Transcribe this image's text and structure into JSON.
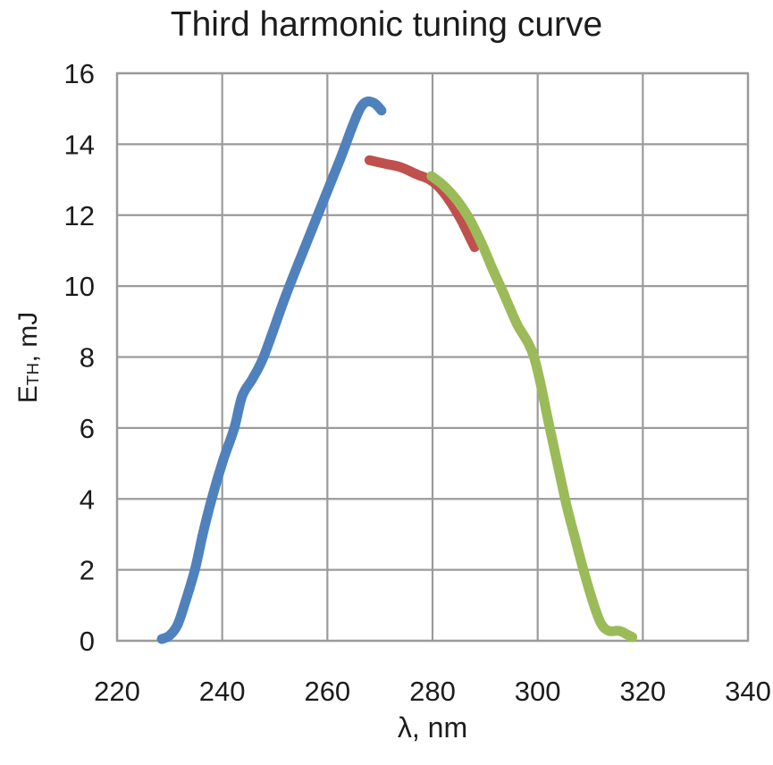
{
  "chart_data": {
    "type": "line",
    "title": "Third harmonic tuning curve",
    "xlabel": "λ, nm",
    "ylabel": {
      "base": "E",
      "sub": "TH",
      "rest": ", mJ"
    },
    "xlim": [
      220,
      340
    ],
    "ylim": [
      0,
      16
    ],
    "x_ticks": [
      220,
      240,
      260,
      280,
      300,
      320,
      340
    ],
    "y_ticks": [
      0,
      2,
      4,
      6,
      8,
      10,
      12,
      14,
      16
    ],
    "grid": true,
    "legend_position": "none",
    "colors": {
      "grid": "#9b9b9b",
      "text": "#1c1c1c",
      "background": "#ffffff",
      "series_blue": "#4f81bd",
      "series_red": "#c0504d",
      "series_green": "#9bbb59"
    },
    "series": [
      {
        "name": "blue-curve",
        "color": "#4f81bd",
        "points": [
          [
            228.5,
            0.05
          ],
          [
            230,
            0.15
          ],
          [
            231.5,
            0.45
          ],
          [
            233,
            1.1
          ],
          [
            234.8,
            2.0
          ],
          [
            236.3,
            3.0
          ],
          [
            238,
            4.0
          ],
          [
            240.2,
            5.1
          ],
          [
            242.3,
            6.0
          ],
          [
            243.8,
            6.9
          ],
          [
            245.8,
            7.4
          ],
          [
            248,
            8.05
          ],
          [
            252,
            9.7
          ],
          [
            256,
            11.2
          ],
          [
            259.5,
            12.5
          ],
          [
            262.5,
            13.6
          ],
          [
            264.5,
            14.4
          ],
          [
            266.2,
            15.0
          ],
          [
            267.5,
            15.2
          ],
          [
            269,
            15.15
          ],
          [
            270.3,
            14.95
          ]
        ]
      },
      {
        "name": "red-curve",
        "color": "#c0504d",
        "points": [
          [
            268,
            13.55
          ],
          [
            271,
            13.45
          ],
          [
            274,
            13.35
          ],
          [
            277,
            13.15
          ],
          [
            279.5,
            13.0
          ],
          [
            281.5,
            12.75
          ],
          [
            283.5,
            12.35
          ],
          [
            285.5,
            11.85
          ],
          [
            287,
            11.4
          ],
          [
            288,
            11.1
          ]
        ]
      },
      {
        "name": "green-curve",
        "color": "#9bbb59",
        "points": [
          [
            279.8,
            13.1
          ],
          [
            282,
            12.85
          ],
          [
            284.5,
            12.45
          ],
          [
            287,
            11.9
          ],
          [
            289.5,
            11.15
          ],
          [
            291.5,
            10.45
          ],
          [
            293.2,
            9.9
          ],
          [
            296,
            8.95
          ],
          [
            299.3,
            8.0
          ],
          [
            302.3,
            6.0
          ],
          [
            305.2,
            4.0
          ],
          [
            307,
            2.95
          ],
          [
            308.7,
            2.0
          ],
          [
            310.5,
            1.1
          ],
          [
            312,
            0.5
          ],
          [
            313.5,
            0.28
          ],
          [
            315.5,
            0.28
          ],
          [
            317,
            0.18
          ],
          [
            318,
            0.1
          ]
        ]
      }
    ]
  }
}
